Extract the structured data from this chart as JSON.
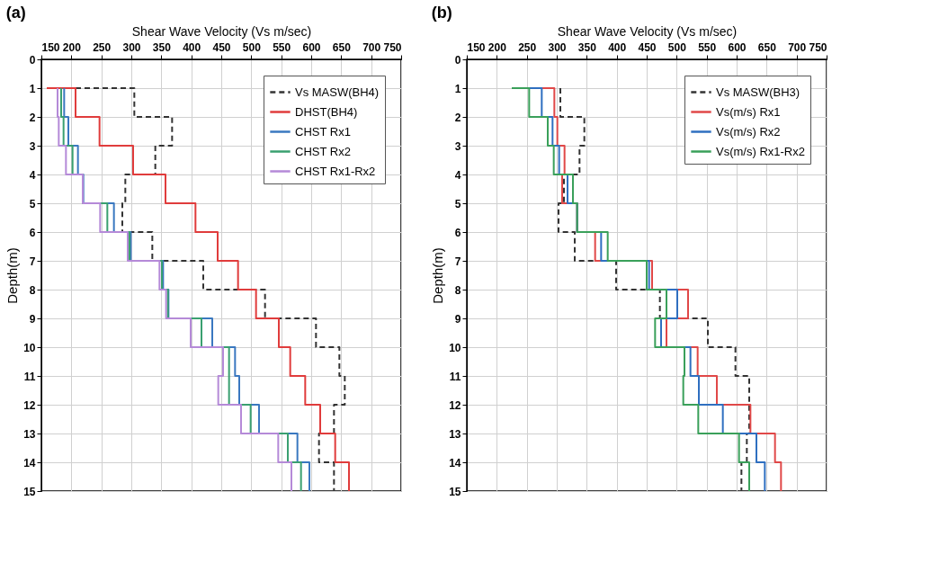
{
  "chart_data": [
    {
      "type": "line",
      "title": "(a)",
      "xlabel": "Shear Wave Velocity (Vs m/sec)",
      "ylabel": "Depth(m)",
      "xlim": [
        150,
        750
      ],
      "xticks": [
        150,
        200,
        250,
        300,
        350,
        400,
        450,
        500,
        550,
        600,
        650,
        700,
        750
      ],
      "ylim": [
        15,
        0
      ],
      "yticks": [
        0,
        1,
        2,
        3,
        4,
        5,
        6,
        7,
        8,
        9,
        10,
        11,
        12,
        13,
        14,
        15
      ],
      "grid": true,
      "legend": "top right",
      "series": [
        {
          "name": "Vs MASW(BH4)",
          "color": "#333333",
          "line_style": "dashed",
          "x": [
            207,
            305,
            305,
            368,
            368,
            340,
            340,
            290,
            290,
            285,
            285,
            335,
            335,
            420,
            420,
            523,
            523,
            608,
            608,
            647,
            647,
            656,
            656,
            638,
            638,
            613,
            613,
            638,
            638
          ],
          "values": [
            1,
            1,
            2,
            2,
            3,
            3,
            4,
            4,
            5,
            5,
            6,
            6,
            7,
            7,
            8,
            8,
            9,
            9,
            10,
            10,
            11,
            11,
            12,
            12,
            13,
            13,
            14,
            14,
            15
          ]
        },
        {
          "name": "DHST(BH4)",
          "color": "#e03c3c",
          "line_style": "solid",
          "x": [
            159,
            207,
            207,
            247,
            247,
            303,
            303,
            357,
            357,
            407,
            407,
            444,
            444,
            478,
            478,
            508,
            508,
            546,
            546,
            565,
            565,
            590,
            590,
            615,
            615,
            640,
            640,
            663,
            663
          ],
          "values": [
            1,
            1,
            2,
            2,
            3,
            3,
            4,
            4,
            5,
            5,
            6,
            6,
            7,
            7,
            8,
            8,
            9,
            9,
            10,
            10,
            11,
            11,
            12,
            12,
            13,
            13,
            14,
            14,
            15
          ]
        },
        {
          "name": "CHST Rx1",
          "color": "#3a78c0",
          "line_style": "solid",
          "x": [
            188,
            188,
            195,
            195,
            211,
            211,
            220,
            220,
            271,
            271,
            299,
            299,
            353,
            353,
            362,
            362,
            435,
            435,
            473,
            473,
            480,
            480,
            513,
            513,
            577,
            577,
            597,
            597
          ],
          "values": [
            1,
            2,
            2,
            3,
            3,
            4,
            4,
            5,
            5,
            6,
            6,
            7,
            7,
            8,
            8,
            9,
            9,
            10,
            10,
            11,
            11,
            12,
            12,
            13,
            13,
            14,
            14,
            15
          ]
        },
        {
          "name": "CHST Rx2",
          "color": "#3aa070",
          "line_style": "solid",
          "x": [
            183,
            183,
            187,
            187,
            202,
            202,
            219,
            219,
            260,
            260,
            297,
            297,
            351,
            351,
            361,
            361,
            417,
            417,
            463,
            463,
            463,
            463,
            499,
            499,
            561,
            561,
            583,
            583
          ],
          "values": [
            1,
            2,
            2,
            3,
            3,
            4,
            4,
            5,
            5,
            6,
            6,
            7,
            7,
            8,
            8,
            9,
            9,
            10,
            10,
            11,
            11,
            12,
            12,
            13,
            13,
            14,
            14,
            15
          ]
        },
        {
          "name": "CHST Rx1-Rx2",
          "color": "#b58ad8",
          "line_style": "solid",
          "x": [
            177,
            177,
            179,
            179,
            191,
            191,
            219,
            219,
            248,
            248,
            294,
            294,
            347,
            347,
            358,
            358,
            399,
            399,
            453,
            453,
            445,
            445,
            483,
            483,
            545,
            545,
            567,
            567
          ],
          "values": [
            1,
            2,
            2,
            3,
            3,
            4,
            4,
            5,
            5,
            6,
            6,
            7,
            7,
            8,
            8,
            9,
            9,
            10,
            10,
            11,
            11,
            12,
            12,
            13,
            13,
            14,
            14,
            15
          ]
        }
      ]
    },
    {
      "type": "line",
      "title": "(b)",
      "xlabel": "Shear Wave Velocity (Vs m/sec)",
      "ylabel": "Depth(m)",
      "xlim": [
        150,
        750
      ],
      "xticks": [
        150,
        200,
        250,
        300,
        350,
        400,
        450,
        500,
        550,
        600,
        650,
        700,
        750
      ],
      "ylim": [
        15,
        0
      ],
      "yticks": [
        0,
        1,
        2,
        3,
        4,
        5,
        6,
        7,
        8,
        9,
        10,
        11,
        12,
        13,
        14,
        15
      ],
      "grid": true,
      "legend": "top right",
      "series": [
        {
          "name": "Vs MASW(BH3)",
          "color": "#333333",
          "line_style": "dashed",
          "x": [
            306,
            306,
            346,
            346,
            338,
            338,
            312,
            312,
            303,
            303,
            330,
            330,
            399,
            399,
            472,
            472,
            552,
            552,
            598,
            598,
            621,
            621,
            621,
            621,
            617,
            617,
            608,
            608
          ],
          "values": [
            1,
            2,
            2,
            3,
            3,
            4,
            4,
            5,
            5,
            6,
            6,
            7,
            7,
            8,
            8,
            9,
            9,
            10,
            10,
            11,
            11,
            12,
            12,
            13,
            13,
            14,
            14,
            15
          ]
        },
        {
          "name": "Vs(m/s) Rx1",
          "color": "#e04848",
          "line_style": "solid",
          "x": [
            275,
            296,
            296,
            301,
            301,
            313,
            313,
            309,
            309,
            334,
            334,
            364,
            364,
            459,
            459,
            519,
            519,
            483,
            483,
            535,
            535,
            567,
            567,
            623,
            623,
            664,
            664,
            674,
            674
          ],
          "values": [
            1,
            1,
            2,
            2,
            3,
            3,
            4,
            4,
            5,
            5,
            6,
            6,
            7,
            7,
            8,
            8,
            9,
            9,
            10,
            10,
            11,
            11,
            12,
            12,
            13,
            13,
            14,
            14,
            15
          ]
        },
        {
          "name": "Vs(m/s) Rx2",
          "color": "#2f6fc0",
          "line_style": "solid",
          "x": [
            254,
            275,
            275,
            293,
            293,
            304,
            304,
            318,
            318,
            334,
            334,
            374,
            374,
            454,
            454,
            501,
            501,
            474,
            474,
            523,
            523,
            537,
            537,
            577,
            577,
            633,
            633,
            647,
            647
          ],
          "values": [
            1,
            1,
            2,
            2,
            3,
            3,
            4,
            4,
            5,
            5,
            6,
            6,
            7,
            7,
            8,
            8,
            9,
            9,
            10,
            10,
            11,
            11,
            12,
            12,
            13,
            13,
            14,
            14,
            15
          ]
        },
        {
          "name": "Vs(m/s) Rx1-Rx2",
          "color": "#3aa05a",
          "line_style": "solid",
          "x": [
            225,
            254,
            254,
            285,
            285,
            295,
            295,
            327,
            327,
            334,
            334,
            385,
            385,
            450,
            450,
            483,
            483,
            464,
            464,
            513,
            513,
            511,
            511,
            536,
            536,
            604,
            604,
            621,
            621
          ],
          "values": [
            1,
            1,
            2,
            2,
            3,
            3,
            4,
            4,
            5,
            5,
            6,
            6,
            7,
            7,
            8,
            8,
            9,
            9,
            10,
            10,
            11,
            11,
            12,
            12,
            13,
            13,
            14,
            14,
            15
          ]
        }
      ]
    }
  ]
}
